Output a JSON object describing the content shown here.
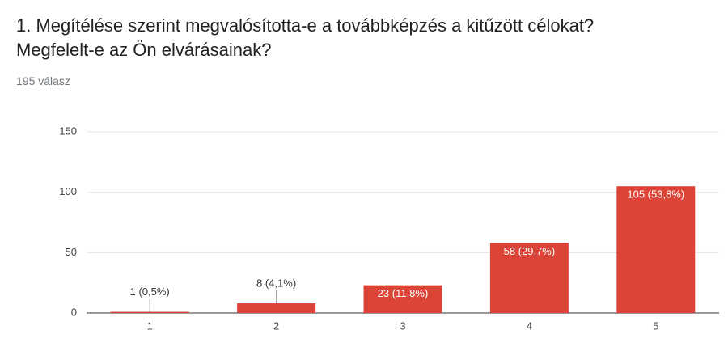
{
  "chart_data": {
    "type": "bar",
    "title": "1. Megítélése szerint megvalósította-e a továbbképzés a kitűzött célokat? Megfelelt-e az Ön elvárásainak?",
    "subtitle": "195 válasz",
    "categories": [
      "1",
      "2",
      "3",
      "4",
      "5"
    ],
    "values": [
      1,
      8,
      23,
      58,
      105
    ],
    "value_labels": [
      "1 (0,5%)",
      "8 (4,1%)",
      "23 (11,8%)",
      "58 (29,7%)",
      "105 (53,8%)"
    ],
    "color": "#db4437",
    "ylim": [
      0,
      150
    ],
    "yticks": [
      0,
      50,
      100,
      150
    ],
    "grid": true
  }
}
